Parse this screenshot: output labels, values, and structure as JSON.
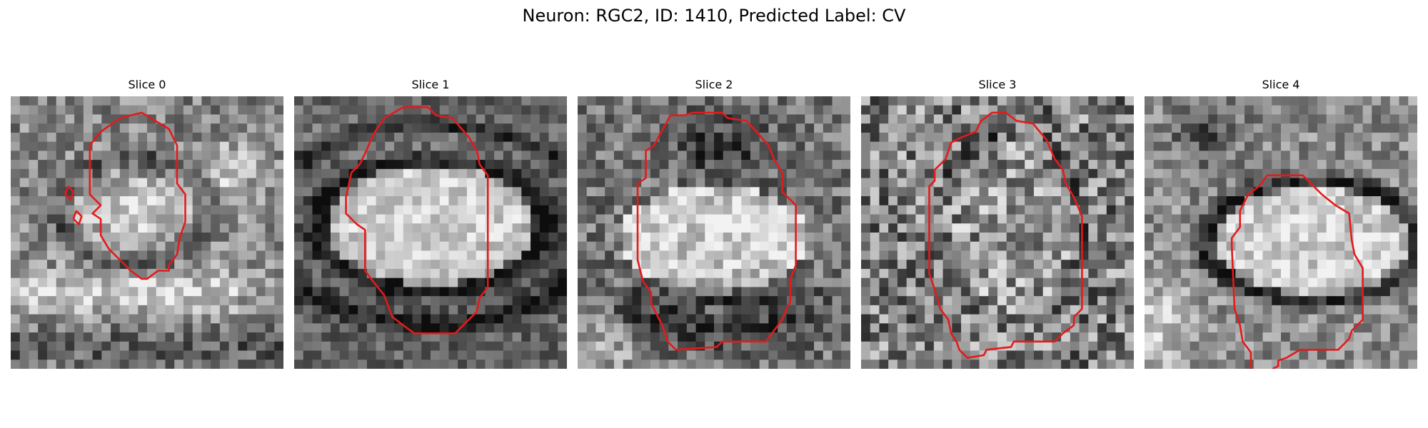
{
  "figure": {
    "title": "Neuron: RGC2, ID: 1410, Predicted Label: CV"
  },
  "colors": {
    "background": "#ffffff",
    "contour": "#e41a1c",
    "image_dark": "#0d0d0d",
    "image_light": "#f2f2f2"
  },
  "panels": [
    {
      "title": "Slice 0",
      "image": "grayscale-microscopy-slice",
      "contour_color": "red"
    },
    {
      "title": "Slice 1",
      "image": "grayscale-microscopy-slice",
      "contour_color": "red"
    },
    {
      "title": "Slice 2",
      "image": "grayscale-microscopy-slice",
      "contour_color": "red"
    },
    {
      "title": "Slice 3",
      "image": "grayscale-microscopy-slice",
      "contour_color": "red"
    },
    {
      "title": "Slice 4",
      "image": "grayscale-microscopy-slice",
      "contour_color": "red"
    }
  ]
}
